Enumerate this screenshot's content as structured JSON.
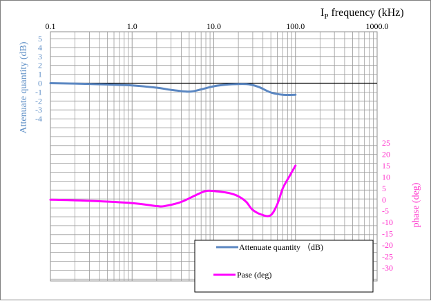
{
  "colors": {
    "attenuate": "#5b87c2",
    "phase": "#ff00ff",
    "left_axis_text": "#5f8fc6",
    "right_axis_text": "#ff33cc",
    "grid": "#9a9a9a"
  },
  "chart_data": {
    "type": "line",
    "x_scale": "log",
    "x_axis": {
      "label": "I",
      "label_sub": "P",
      "label_rest": " frequency (kHz)",
      "tick_labels": [
        "0.1",
        "1.0",
        "10.0",
        "100.0",
        "1000.0"
      ],
      "range": [
        0.1,
        1000
      ]
    },
    "left_axis": {
      "label": "Attenuate quantity (dB)",
      "tick_labels": [
        "5",
        "4",
        "3",
        "2",
        "1",
        "0",
        "-1",
        "-2",
        "-3",
        "-4"
      ]
    },
    "right_axis": {
      "label": "phase (deg)",
      "tick_labels": [
        "25",
        "20",
        "15",
        "10",
        "5",
        "0",
        "-5",
        "-10",
        "-15",
        "-20",
        "-25",
        "-30"
      ]
    },
    "grid": true,
    "legend_position": "bottom-right",
    "series": [
      {
        "name": "Attenuate quantity （dB)",
        "axis": "left",
        "x": [
          0.1,
          0.2,
          0.5,
          1.0,
          2.0,
          3.0,
          5.0,
          7.0,
          10.0,
          15.0,
          25.0,
          35.0,
          50.0,
          70.0,
          100.0
        ],
        "y": [
          0.0,
          -0.05,
          -0.15,
          -0.25,
          -0.5,
          -0.75,
          -0.95,
          -0.7,
          -0.35,
          -0.15,
          -0.1,
          -0.4,
          -1.05,
          -1.3,
          -1.3
        ]
      },
      {
        "name": "Pase (deg)",
        "axis": "right",
        "x": [
          0.1,
          0.3,
          1.0,
          2.0,
          2.5,
          4.0,
          6.0,
          8.0,
          10.0,
          15.0,
          20.0,
          25.0,
          30.0,
          40.0,
          50.0,
          60.0,
          70.0,
          85.0,
          100.0
        ],
        "y": [
          0.0,
          -0.5,
          -1.5,
          -2.8,
          -2.8,
          -1.0,
          2.0,
          3.8,
          3.8,
          3.0,
          1.5,
          -1.0,
          -4.5,
          -6.8,
          -6.8,
          -2.0,
          5.0,
          10.5,
          15.0
        ]
      }
    ]
  }
}
